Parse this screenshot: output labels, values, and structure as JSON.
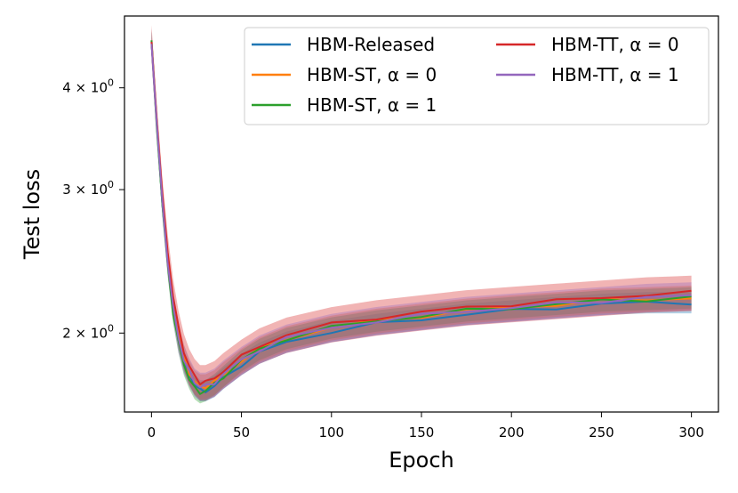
{
  "chart_data": {
    "type": "line",
    "xlabel": "Epoch",
    "ylabel": "Test loss",
    "xlim": [
      -15,
      315
    ],
    "ylim": [
      1.6,
      4.9
    ],
    "yscale": "log",
    "grid": false,
    "legend_position": "top-right",
    "legend_columns": 2,
    "x_ticks": [
      {
        "value": 0,
        "label": "0"
      },
      {
        "value": 50,
        "label": "50"
      },
      {
        "value": 100,
        "label": "100"
      },
      {
        "value": 150,
        "label": "150"
      },
      {
        "value": 200,
        "label": "200"
      },
      {
        "value": 250,
        "label": "250"
      },
      {
        "value": 300,
        "label": "300"
      }
    ],
    "y_ticks": [
      {
        "value": 2,
        "base": "2",
        "exp": "0"
      },
      {
        "value": 3,
        "base": "3",
        "exp": "0"
      },
      {
        "value": 4,
        "base": "4",
        "exp": "0"
      }
    ],
    "epochs": [
      0,
      3,
      6,
      9,
      12,
      15,
      18,
      21,
      24,
      27,
      30,
      35,
      40,
      50,
      60,
      75,
      100,
      125,
      150,
      175,
      200,
      225,
      250,
      275,
      300
    ],
    "series": [
      {
        "name": "HBM-Released",
        "color": "#1f77b4",
        "values": [
          4.55,
          3.6,
          2.9,
          2.45,
          2.15,
          1.97,
          1.85,
          1.78,
          1.73,
          1.7,
          1.7,
          1.72,
          1.76,
          1.83,
          1.89,
          1.95,
          2.01,
          2.05,
          2.08,
          2.11,
          2.13,
          2.15,
          2.17,
          2.18,
          2.18
        ],
        "band": 0.03
      },
      {
        "name": "HBM-ST, α = 0",
        "color": "#ff7f0e",
        "values": [
          4.55,
          3.62,
          2.92,
          2.47,
          2.17,
          1.99,
          1.87,
          1.79,
          1.74,
          1.72,
          1.72,
          1.74,
          1.78,
          1.85,
          1.91,
          1.97,
          2.03,
          2.07,
          2.1,
          2.13,
          2.15,
          2.17,
          2.19,
          2.2,
          2.21
        ],
        "band": 0.035
      },
      {
        "name": "HBM-ST, α = 1",
        "color": "#2ca02c",
        "values": [
          4.55,
          3.58,
          2.88,
          2.42,
          2.12,
          1.95,
          1.83,
          1.76,
          1.71,
          1.69,
          1.7,
          1.73,
          1.77,
          1.85,
          1.91,
          1.97,
          2.03,
          2.07,
          2.1,
          2.13,
          2.15,
          2.17,
          2.19,
          2.2,
          2.21
        ],
        "band": 0.03
      },
      {
        "name": "HBM-TT, α = 0",
        "color": "#d62728",
        "values": [
          4.55,
          3.65,
          2.96,
          2.52,
          2.22,
          2.03,
          1.9,
          1.82,
          1.77,
          1.74,
          1.74,
          1.76,
          1.8,
          1.87,
          1.93,
          1.99,
          2.05,
          2.09,
          2.12,
          2.15,
          2.17,
          2.19,
          2.21,
          2.23,
          2.24
        ],
        "band": 0.05
      },
      {
        "name": "HBM-TT, α = 1",
        "color": "#9467bd",
        "values": [
          4.55,
          3.6,
          2.9,
          2.45,
          2.15,
          1.97,
          1.86,
          1.79,
          1.74,
          1.72,
          1.72,
          1.74,
          1.78,
          1.85,
          1.91,
          1.97,
          2.03,
          2.07,
          2.1,
          2.13,
          2.15,
          2.17,
          2.19,
          2.21,
          2.22
        ],
        "band": 0.04
      }
    ]
  }
}
